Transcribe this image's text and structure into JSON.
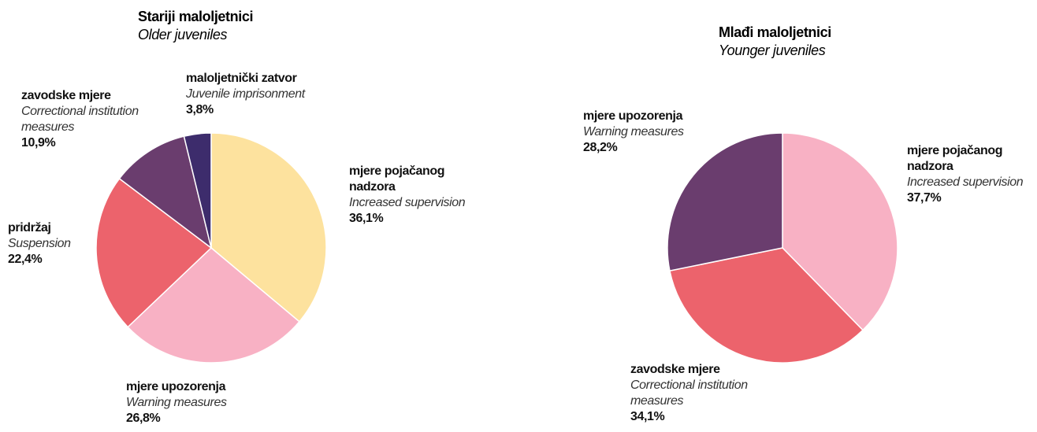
{
  "chart_data": [
    {
      "type": "pie",
      "title": "Stariji maloljetnici",
      "subtitle": "Older juveniles",
      "categories": [
        "mjere pojačanog nadzora",
        "mjere upozorenja",
        "pridržaj",
        "zavodske mjere",
        "maloljetnički zatvor"
      ],
      "category_subtitles": [
        "Increased supervision",
        "Warning measures",
        "Suspension",
        "Correctional institution measures",
        "Juvenile imprisonment"
      ],
      "values": [
        36.1,
        26.8,
        22.4,
        10.9,
        3.8
      ],
      "value_labels": [
        "36,1%",
        "26,8%",
        "22,4%",
        "10,9%",
        "3,8%"
      ],
      "colors": [
        "#fde29e",
        "#f8b1c4",
        "#ec636c",
        "#6a3d6e",
        "#3d2c6c"
      ]
    },
    {
      "type": "pie",
      "title": "Mlađi maloljetnici",
      "subtitle": "Younger juveniles",
      "categories": [
        "mjere pojačanog nadzora",
        "zavodske mjere",
        "mjere upozorenja"
      ],
      "category_subtitles": [
        "Increased supervision",
        "Correctional institution measures",
        "Warning measures"
      ],
      "values": [
        37.7,
        34.1,
        28.2
      ],
      "value_labels": [
        "37,7%",
        "34,1%",
        "28,2%"
      ],
      "colors": [
        "#f8b1c4",
        "#ec636c",
        "#6a3d6e"
      ]
    }
  ]
}
